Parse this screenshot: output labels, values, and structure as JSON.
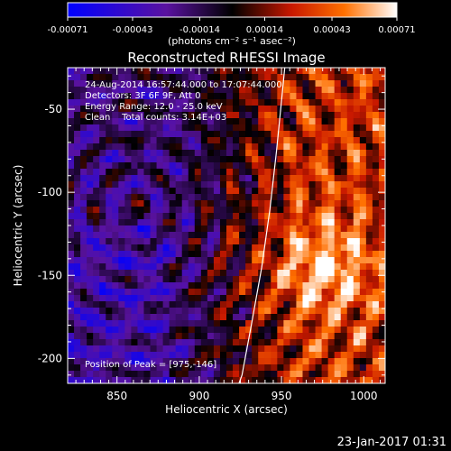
{
  "chart_data": {
    "type": "heatmap",
    "title": "Reconstructed RHESSI Image",
    "xlabel": "Heliocentric X (arcsec)",
    "ylabel": "Heliocentric Y (arcsec)",
    "xlim": [
      820,
      1013
    ],
    "ylim": [
      -215,
      -25
    ],
    "xticks": [
      "850",
      "900",
      "950",
      "1000"
    ],
    "yticks": [
      "-50",
      "-100",
      "-150",
      "-200"
    ],
    "colorbar": {
      "range": [
        -0.00071,
        0.00071
      ],
      "ticks": [
        "-0.00071",
        "-0.00043",
        "-0.00014",
        "0.00014",
        "0.00043",
        "0.00071"
      ],
      "unit_label": "(photons cm⁻² s⁻¹ asec⁻²)",
      "colors": [
        "#0000ff",
        "#5a12a0",
        "#000000",
        "#c81800",
        "#ff7000",
        "#ffffff"
      ]
    },
    "info_lines": [
      "24-Aug-2014 16:57:44.000 to 17:07:44.000",
      "Detectors: 3F 6F 9F, Att 0",
      "Energy Range: 12.0 - 25.0 keV",
      "Clean    Total counts: 3.14E+03"
    ],
    "peak_label": "Position of Peak = [975,-146]",
    "peak": [
      975,
      -146
    ],
    "limb_line": [
      [
        923,
        -218
      ],
      [
        926,
        -210
      ],
      [
        932,
        -178
      ],
      [
        938,
        -145
      ],
      [
        943,
        -110
      ],
      [
        947,
        -75
      ],
      [
        950,
        -45
      ],
      [
        952,
        -25
      ]
    ],
    "annotation_color": "#ffffff"
  },
  "footer": {
    "timestamp": "23-Jan-2017 01:31"
  }
}
